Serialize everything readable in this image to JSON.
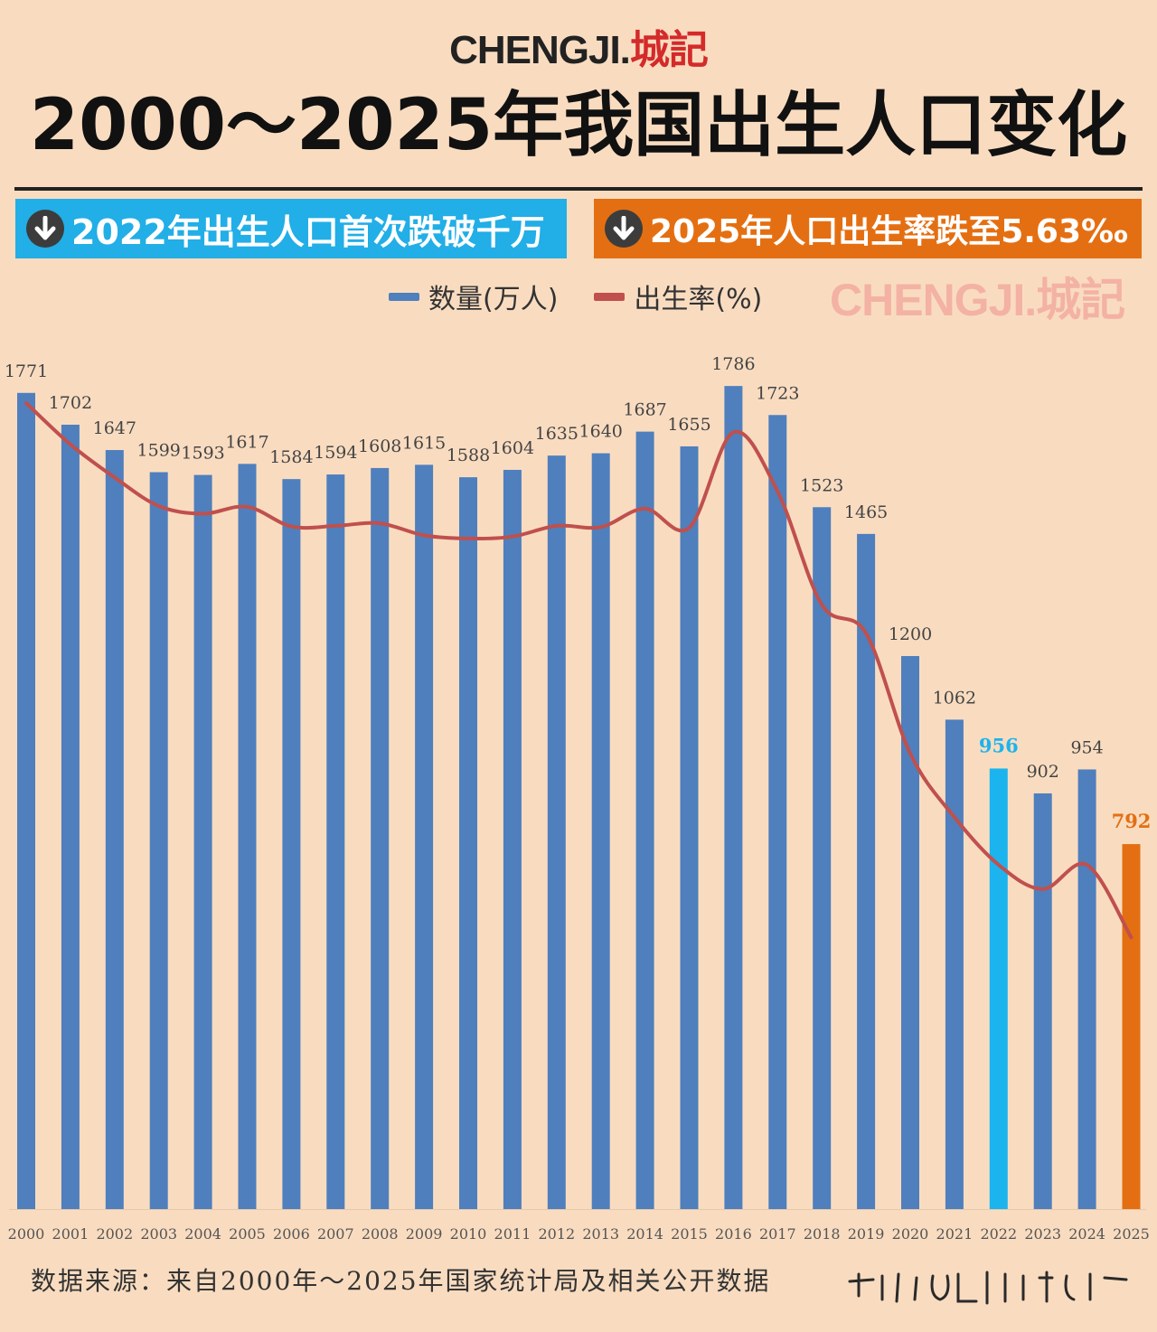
{
  "logo": {
    "brand_en": "CHENGJI.",
    "brand_cn": "城記"
  },
  "title": "2000～2025年我国出生人口变化",
  "banners": {
    "left": "2022年出生人口首次跌破千万",
    "right": "2025年人口出生率跌至5.63‰"
  },
  "legend": {
    "bar_label": "数量(万人)",
    "line_label": "出生率(%)"
  },
  "colors": {
    "bar": "#4f7fbd",
    "bar_highlight_2022": "#1bb4ee",
    "bar_highlight_2025": "#e46f12",
    "line": "#c0504d",
    "banner_left": "#22aee6",
    "banner_right": "#e46f12"
  },
  "chart_data": {
    "type": "bar",
    "title": "2000～2025年我国出生人口变化",
    "xlabel": "",
    "ylabel": "",
    "ylim": [
      0,
      1900
    ],
    "categories": [
      "2000",
      "2001",
      "2002",
      "2003",
      "2004",
      "2005",
      "2006",
      "2007",
      "2008",
      "2009",
      "2010",
      "2011",
      "2012",
      "2013",
      "2014",
      "2015",
      "2016",
      "2017",
      "2018",
      "2019",
      "2020",
      "2021",
      "2022",
      "2023",
      "2024",
      "2025"
    ],
    "series": [
      {
        "name": "数量(万人)",
        "type": "bar",
        "values": [
          1771,
          1702,
          1647,
          1599,
          1593,
          1617,
          1584,
          1594,
          1608,
          1615,
          1588,
          1604,
          1635,
          1640,
          1687,
          1655,
          1786,
          1723,
          1523,
          1465,
          1200,
          1062,
          956,
          902,
          954,
          792
        ]
      },
      {
        "name": "出生率(%)",
        "type": "line",
        "values": [
          14.03,
          13.38,
          12.86,
          12.41,
          12.29,
          12.4,
          12.09,
          12.1,
          12.14,
          11.95,
          11.9,
          11.93,
          12.1,
          12.08,
          12.37,
          12.07,
          13.57,
          12.64,
          10.86,
          10.41,
          8.52,
          7.52,
          6.77,
          6.39,
          6.77,
          5.63
        ]
      }
    ],
    "highlights": {
      "2022": "956",
      "2025": "792"
    },
    "legend": "top-center"
  },
  "source_note": "数据来源：来自2000年～2025年国家统计局及相关公开数据",
  "signature_label": "signature"
}
